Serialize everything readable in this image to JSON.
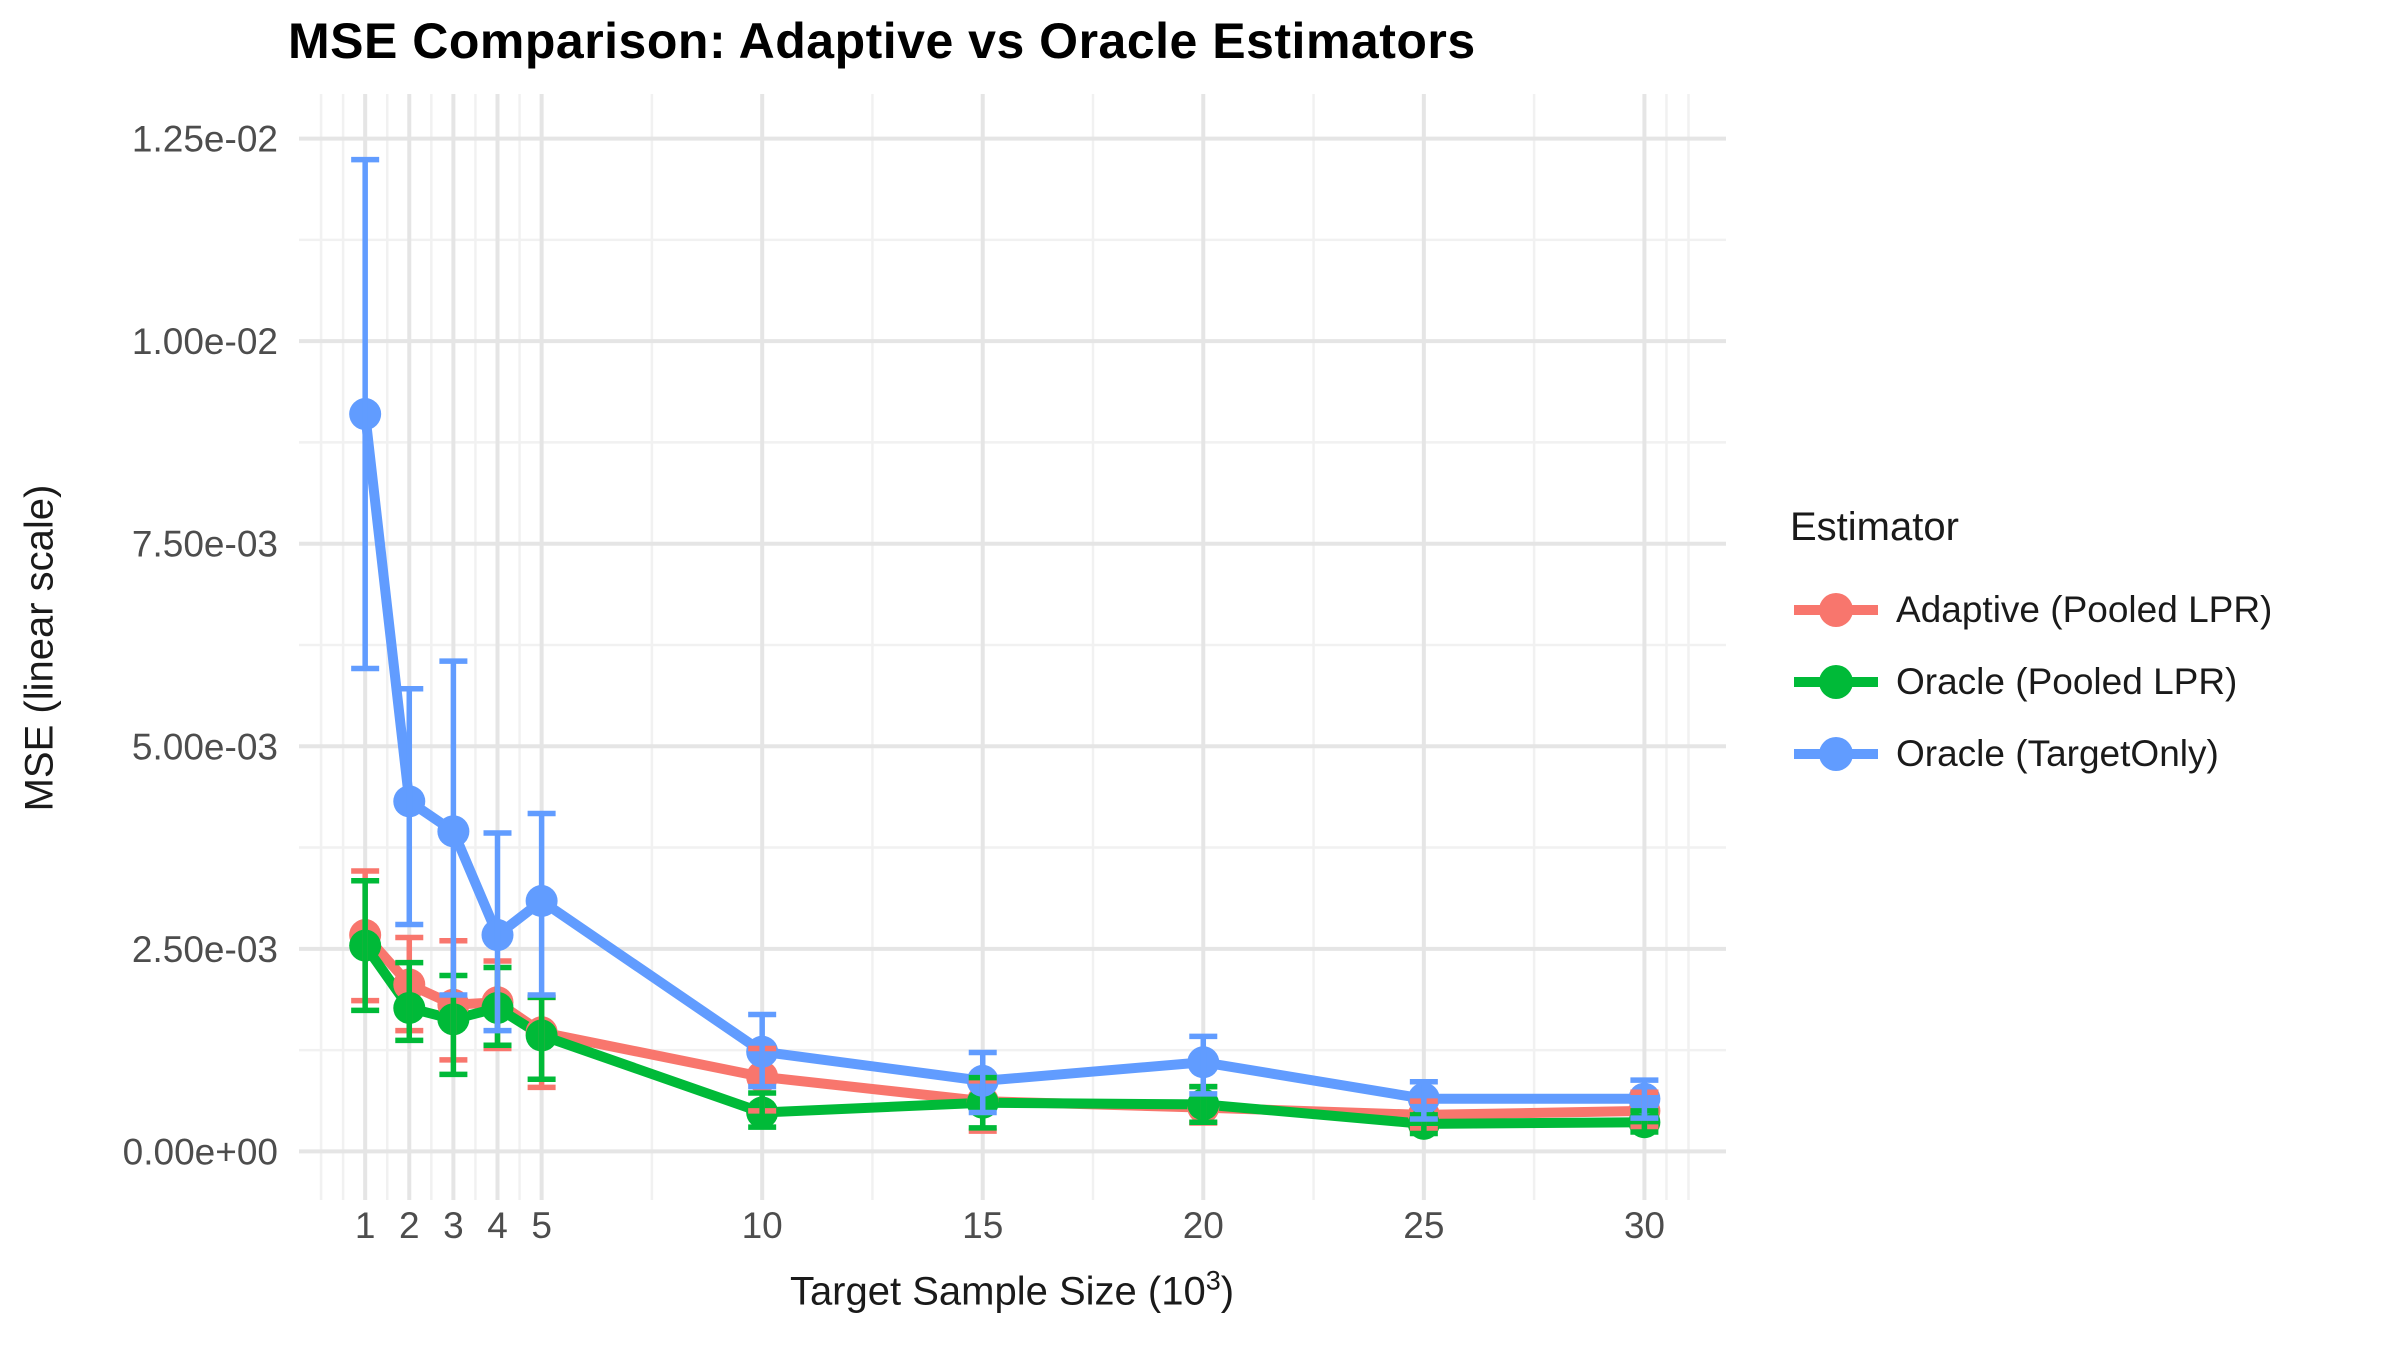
{
  "page": {
    "background": "#FFFFFF"
  },
  "chart_data": {
    "type": "line",
    "title": "MSE Comparison: Adaptive vs Oracle Estimators",
    "x_axis": {
      "label_prefix": "Target Sample Size (10",
      "label_exponent": "3",
      "label_suffix": ")",
      "ticks": [
        1,
        2,
        3,
        4,
        5,
        10,
        15,
        20,
        25,
        30
      ],
      "minor_ticks": [
        0,
        0.5,
        1.5,
        2.5,
        3.5,
        4.5,
        7.5,
        12.5,
        17.5,
        22.5,
        27.5,
        30.5,
        31
      ],
      "range": [
        -0.5,
        31.85
      ]
    },
    "y_axis": {
      "label": "MSE (linear scale)",
      "tick_values": [
        0,
        0.0025,
        0.005,
        0.0075,
        0.01,
        0.0125
      ],
      "tick_labels": [
        "0.00e+00",
        "2.50e-03",
        "5.00e-03",
        "7.50e-03",
        "1.00e-02",
        "1.25e-02"
      ],
      "minor_tick_values": [
        0.00125,
        0.00375,
        0.00625,
        0.00875,
        0.01125
      ],
      "range": [
        -0.0006,
        0.01305
      ]
    },
    "legend": {
      "title": "Estimator",
      "position": "right"
    },
    "grid": true,
    "x": [
      1,
      2,
      3,
      4,
      5,
      10,
      15,
      20,
      25,
      30
    ],
    "series": [
      {
        "name": "Adaptive (Pooled LPR)",
        "color": "#F8766D",
        "y": [
          0.00267,
          0.00206,
          0.00181,
          0.00184,
          0.00147,
          0.00092,
          0.00062,
          0.00054,
          0.00045,
          0.0005
        ],
        "ymin": [
          0.00186,
          0.00149,
          0.00113,
          0.00127,
          0.00079,
          0.0005,
          0.00025,
          0.00035,
          0.00028,
          0.0003
        ],
        "ymax": [
          0.00346,
          0.00264,
          0.0026,
          0.00235,
          0.0019,
          0.00127,
          0.00087,
          0.0008,
          0.00062,
          0.00073
        ]
      },
      {
        "name": "Oracle (Pooled LPR)",
        "color": "#00BA38",
        "y": [
          0.00254,
          0.00177,
          0.00163,
          0.00177,
          0.00143,
          0.00048,
          0.0006,
          0.00058,
          0.00034,
          0.00036
        ],
        "ymin": [
          0.00174,
          0.00137,
          0.00095,
          0.00131,
          0.00089,
          0.0003,
          0.00029,
          0.00036,
          0.00022,
          0.00024
        ],
        "ymax": [
          0.00334,
          0.00233,
          0.00217,
          0.00227,
          0.0019,
          0.00072,
          0.00091,
          0.0008,
          0.00045,
          0.0005
        ]
      },
      {
        "name": "Oracle (TargetOnly)",
        "color": "#619CFF",
        "y": [
          0.0091,
          0.00432,
          0.00395,
          0.00267,
          0.00309,
          0.00123,
          0.00087,
          0.0011,
          0.00065,
          0.00065
        ],
        "ymin": [
          0.00596,
          0.0028,
          0.00193,
          0.00149,
          0.00193,
          0.0008,
          0.00048,
          0.00071,
          0.0004,
          0.00041
        ],
        "ymax": [
          0.01224,
          0.00571,
          0.00605,
          0.00393,
          0.00417,
          0.00169,
          0.00122,
          0.00142,
          0.00086,
          0.00088
        ]
      }
    ]
  },
  "style": {
    "grid_major_color": "#E5E5E5",
    "grid_minor_color": "#F1F1F1",
    "tick_label_color": "#4D4D4D",
    "text_color": "#1A1A1A",
    "background": "#FFFFFF"
  }
}
